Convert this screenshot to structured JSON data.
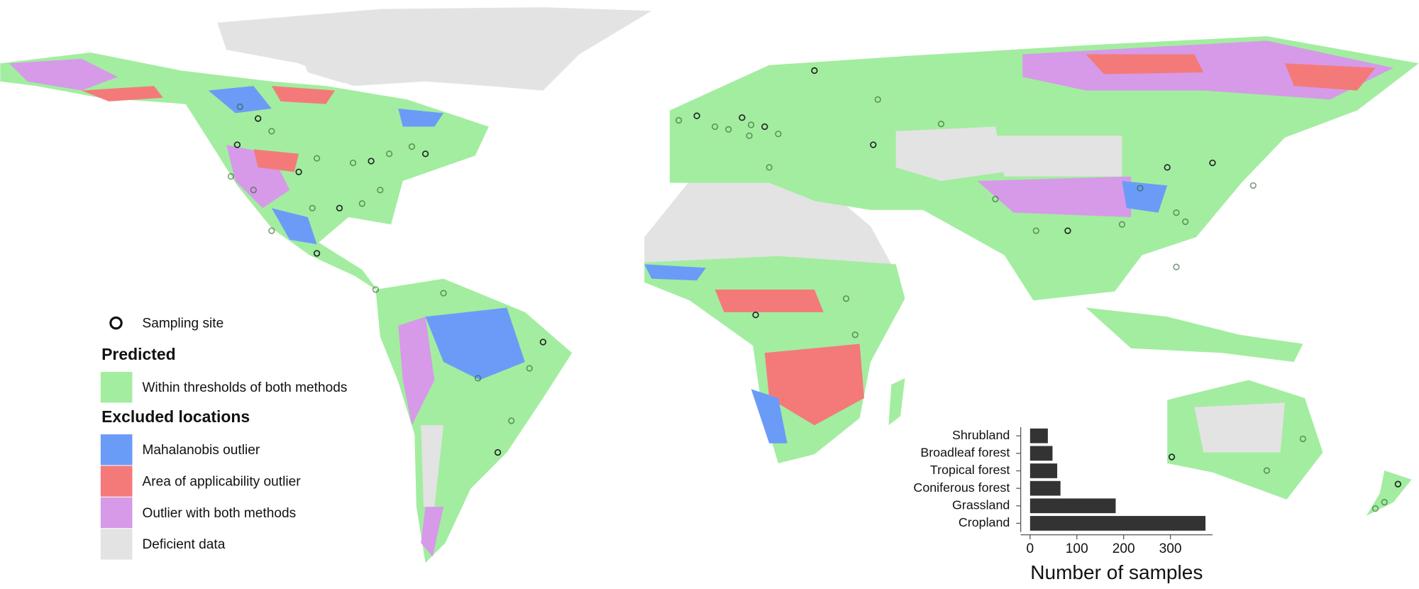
{
  "legend": {
    "sampling_site": "Sampling site",
    "predicted_heading": "Predicted",
    "predicted": [
      {
        "label": "Within thresholds of both methods",
        "color": "#a3eda0"
      }
    ],
    "excluded_heading": "Excluded locations",
    "excluded": [
      {
        "label": "Mahalanobis outlier",
        "color": "#6a9cf7"
      },
      {
        "label": "Area of applicability outlier",
        "color": "#f47a7a"
      },
      {
        "label": "Outlier with both methods",
        "color": "#d69ae8"
      },
      {
        "label": "Deficient data",
        "color": "#e3e3e3"
      }
    ]
  },
  "chart_data": {
    "type": "bar",
    "orientation": "horizontal",
    "categories": [
      "Shrubland",
      "Broadleaf forest",
      "Tropical forest",
      "Coniferous forest",
      "Grassland",
      "Cropland"
    ],
    "values": [
      38,
      48,
      58,
      65,
      183,
      375
    ],
    "color": "#333333",
    "xlim": [
      -20,
      390
    ],
    "xticks": [
      0,
      100,
      200,
      300
    ],
    "xlabel": "Number of samples"
  }
}
